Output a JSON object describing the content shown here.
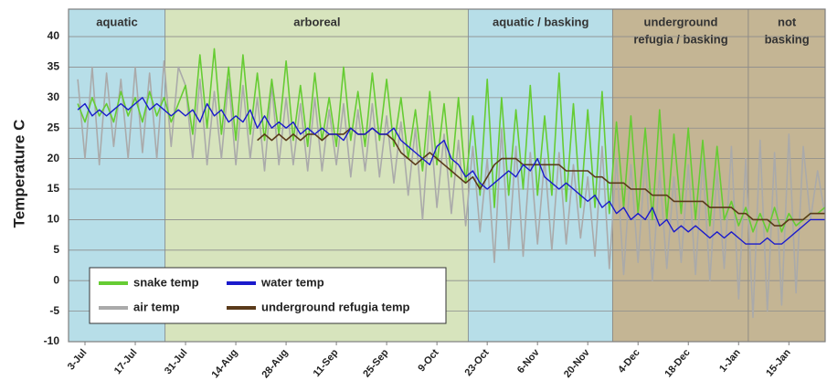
{
  "chart_data": {
    "type": "line",
    "y_label": "Temperature C",
    "ylim": [
      -10,
      44.5
    ],
    "yticks": [
      -10,
      -5,
      0,
      5,
      10,
      15,
      20,
      25,
      30,
      35,
      40
    ],
    "grid": true,
    "legend": "bottom-left",
    "regions": [
      {
        "label": [
          "aquatic"
        ],
        "end": 12.2,
        "color": "#b7dee8"
      },
      {
        "label": [
          "arboreal"
        ],
        "end": 54.4,
        "color": "#d7e4bd"
      },
      {
        "label": [
          "aquatic / basking"
        ],
        "end": 74.5,
        "color": "#b7dee8"
      },
      {
        "label": [
          "underground",
          "refugia  / basking"
        ],
        "end": 93.4,
        "color": "#c4b594"
      },
      {
        "label": [
          "not",
          "basking"
        ],
        "color": "#c4b594"
      }
    ],
    "categories": [
      null,
      "3-Jul",
      null,
      null,
      null,
      null,
      null,
      null,
      "17-Jul",
      null,
      null,
      null,
      null,
      null,
      null,
      "31-Jul",
      null,
      null,
      null,
      null,
      null,
      null,
      "14-Aug",
      null,
      null,
      null,
      null,
      null,
      null,
      "28-Aug",
      null,
      null,
      null,
      null,
      null,
      null,
      "11-Sep",
      null,
      null,
      null,
      null,
      null,
      null,
      "25-Sep",
      null,
      null,
      null,
      null,
      null,
      null,
      "9-Oct",
      null,
      null,
      null,
      null,
      null,
      null,
      "23-Oct",
      null,
      null,
      null,
      null,
      null,
      null,
      "6-Nov",
      null,
      null,
      null,
      null,
      null,
      null,
      "20-Nov",
      null,
      null,
      null,
      null,
      null,
      null,
      "4-Dec",
      null,
      null,
      null,
      null,
      null,
      null,
      "18-Dec",
      null,
      null,
      null,
      null,
      null,
      null,
      "1-Jan",
      null,
      null,
      null,
      null,
      null,
      null,
      "15-Jan",
      null,
      null,
      null,
      null,
      null
    ],
    "series": [
      {
        "name": "snake temp",
        "color": "#66cc33",
        "values": [
          29,
          26,
          30,
          27,
          29,
          26,
          31,
          27,
          30,
          26,
          31,
          27,
          30,
          26,
          29,
          32,
          24,
          37,
          25,
          38,
          24,
          35,
          23,
          37,
          24,
          34,
          23,
          33,
          24,
          36,
          23,
          32,
          22,
          34,
          23,
          30,
          22,
          35,
          23,
          31,
          22,
          34,
          23,
          33,
          22,
          30,
          20,
          28,
          18,
          31,
          19,
          29,
          17,
          30,
          16,
          27,
          14,
          33,
          12,
          30,
          14,
          28,
          15,
          32,
          14,
          27,
          14,
          34,
          13,
          29,
          12,
          28,
          12,
          31,
          11,
          26,
          12,
          27,
          11,
          25,
          10,
          28,
          10,
          24,
          11,
          25,
          10,
          23,
          9,
          22,
          10,
          13,
          9,
          12,
          8,
          11,
          8,
          12,
          8,
          11,
          9,
          10,
          11,
          11,
          12
        ]
      },
      {
        "name": "water temp",
        "color": "#1a1acc",
        "values": [
          28,
          29,
          27,
          28,
          27,
          28,
          29,
          28,
          29,
          30,
          28,
          29,
          28,
          27,
          28,
          27,
          28,
          26,
          29,
          27,
          28,
          26,
          27,
          26,
          28,
          25,
          27,
          25,
          26,
          25,
          26,
          24,
          25,
          24,
          25,
          24,
          24,
          23,
          25,
          24,
          24,
          25,
          24,
          24,
          25,
          23,
          22,
          21,
          20,
          19,
          22,
          23,
          20,
          19,
          17,
          18,
          16,
          15,
          16,
          17,
          18,
          17,
          19,
          18,
          20,
          17,
          16,
          15,
          16,
          15,
          14,
          13,
          14,
          12,
          13,
          11,
          12,
          10,
          11,
          10,
          12,
          9,
          10,
          8,
          9,
          8,
          9,
          8,
          7,
          8,
          7,
          8,
          7,
          6,
          6,
          6,
          7,
          6,
          6,
          7,
          8,
          9,
          10,
          10,
          10
        ]
      },
      {
        "name": "air temp",
        "color": "#aaaaaa",
        "values": [
          33,
          20,
          35,
          19,
          34,
          22,
          33,
          20,
          35,
          21,
          34,
          20,
          36,
          22,
          35,
          32,
          20,
          33,
          19,
          31,
          20,
          33,
          19,
          32,
          20,
          30,
          18,
          32,
          19,
          30,
          19,
          29,
          18,
          30,
          18,
          28,
          19,
          29,
          17,
          28,
          18,
          29,
          17,
          27,
          16,
          26,
          14,
          25,
          10,
          27,
          12,
          24,
          11,
          23,
          9,
          22,
          8,
          20,
          3,
          25,
          5,
          22,
          4,
          21,
          6,
          20,
          5,
          21,
          6,
          19,
          7,
          17,
          4,
          22,
          2,
          20,
          1,
          19,
          3,
          20,
          0,
          18,
          2,
          17,
          3,
          19,
          1,
          20,
          0,
          18,
          2,
          22,
          -3,
          20,
          -6,
          23,
          -5,
          21,
          -4,
          24,
          -2,
          22,
          10,
          18,
          11
        ]
      },
      {
        "name": "underground  refugia temp",
        "color": "#5a3a1a",
        "values": [
          null,
          null,
          null,
          null,
          null,
          null,
          null,
          null,
          null,
          null,
          null,
          null,
          null,
          null,
          null,
          null,
          null,
          null,
          null,
          null,
          null,
          null,
          null,
          null,
          null,
          23,
          24,
          23,
          24,
          23,
          24,
          23,
          24,
          24,
          23,
          24,
          24,
          24,
          25,
          24,
          24,
          25,
          24,
          24,
          23,
          21,
          20,
          19,
          20,
          21,
          20,
          19,
          18,
          17,
          16,
          17,
          15,
          17,
          19,
          20,
          20,
          20,
          19,
          19,
          19,
          19,
          19,
          19,
          18,
          18,
          18,
          18,
          17,
          17,
          16,
          16,
          16,
          15,
          15,
          15,
          14,
          14,
          14,
          13,
          13,
          13,
          13,
          13,
          12,
          12,
          12,
          12,
          11,
          11,
          10,
          10,
          10,
          9,
          9,
          10,
          10,
          10,
          11,
          11,
          11
        ]
      }
    ]
  }
}
